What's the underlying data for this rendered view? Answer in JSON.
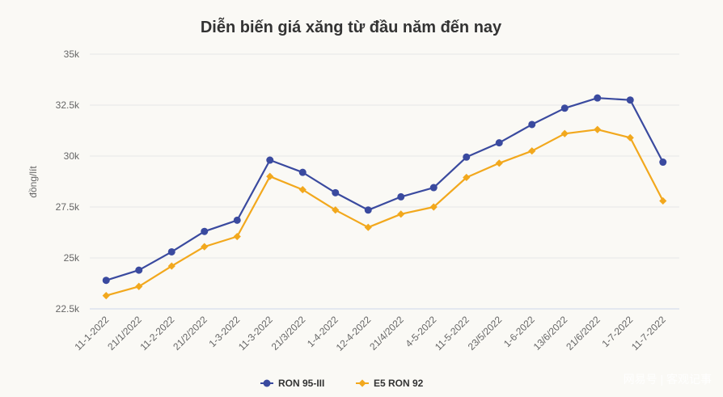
{
  "chart_data": {
    "type": "line",
    "title": "Diễn biến giá xăng từ đầu năm đến nay",
    "ylabel": "đồng/lít",
    "xlabel": "",
    "ylim": [
      22500,
      35000
    ],
    "yticks": [
      22500,
      25000,
      27500,
      30000,
      32500,
      35000
    ],
    "ytick_labels": [
      "22.5k",
      "25k",
      "27.5k",
      "30k",
      "32.5k",
      "35k"
    ],
    "grid": true,
    "legend_position": "bottom-center",
    "categories": [
      "11-1-2022",
      "21/1/2022",
      "11-2-2022",
      "21/2/2022",
      "1-3-2022",
      "11-3-2022",
      "21/3/2022",
      "1-4-2022",
      "12-4-2022",
      "21/4/2022",
      "4-5-2022",
      "11-5-2022",
      "23/5/2022",
      "1-6-2022",
      "13/6/2022",
      "21/6/2022",
      "1-7-2022",
      "11-7-2022"
    ],
    "series": [
      {
        "name": "RON 95-III",
        "color": "#3a4a9f",
        "marker": "circle",
        "values": [
          23900,
          24400,
          25300,
          26300,
          26850,
          29800,
          29200,
          28200,
          27350,
          28000,
          28450,
          29950,
          30650,
          31550,
          32350,
          32850,
          32750,
          29700
        ]
      },
      {
        "name": "E5 RON 92",
        "color": "#f2a81d",
        "marker": "diamond",
        "values": [
          23150,
          23600,
          24600,
          25550,
          26050,
          29000,
          28350,
          27350,
          26500,
          27150,
          27500,
          28950,
          29650,
          30250,
          31100,
          31300,
          30900,
          27800
        ]
      }
    ]
  },
  "watermark": "网易号 | 客观记事"
}
